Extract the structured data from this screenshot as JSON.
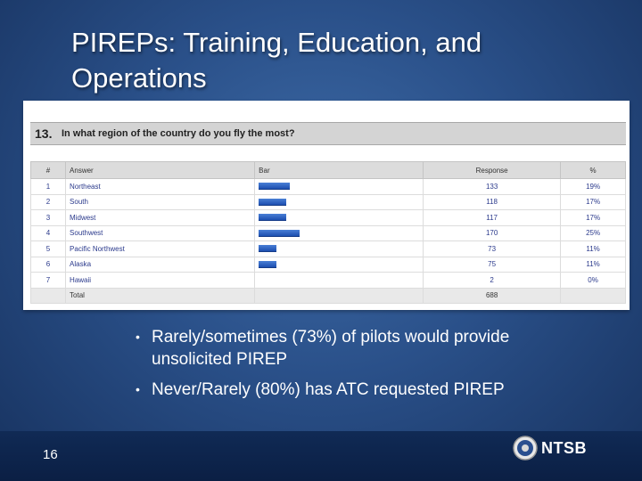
{
  "slide": {
    "title_lines": [
      "PIREPs: Training, Education, and",
      "Operations"
    ],
    "page_number": "16",
    "brand": "NTSB",
    "bullets": [
      [
        "Rarely/sometimes (73%) of pilots would provide",
        "unsolicited PIREP"
      ],
      [
        "Never/Rarely (80%) has ATC requested PIREP"
      ]
    ]
  },
  "survey": {
    "question_number": "13.",
    "question_text": "In what region of the country do you fly the most?",
    "headers": [
      "#",
      "Answer",
      "Bar",
      "Response",
      "%"
    ],
    "rows": [
      {
        "num": "1",
        "answer": "Northeast",
        "response": "133",
        "pct": "19%",
        "share": 0.19
      },
      {
        "num": "2",
        "answer": "South",
        "response": "118",
        "pct": "17%",
        "share": 0.17
      },
      {
        "num": "3",
        "answer": "Midwest",
        "response": "117",
        "pct": "17%",
        "share": 0.17
      },
      {
        "num": "4",
        "answer": "Southwest",
        "response": "170",
        "pct": "25%",
        "share": 0.25
      },
      {
        "num": "5",
        "answer": "Pacific Northwest",
        "response": "73",
        "pct": "11%",
        "share": 0.11
      },
      {
        "num": "6",
        "answer": "Alaska",
        "response": "75",
        "pct": "11%",
        "share": 0.11
      },
      {
        "num": "7",
        "answer": "Hawaii",
        "response": "2",
        "pct": "0%",
        "share": 0.0
      }
    ],
    "total_label": "Total",
    "total_value": "688"
  }
}
